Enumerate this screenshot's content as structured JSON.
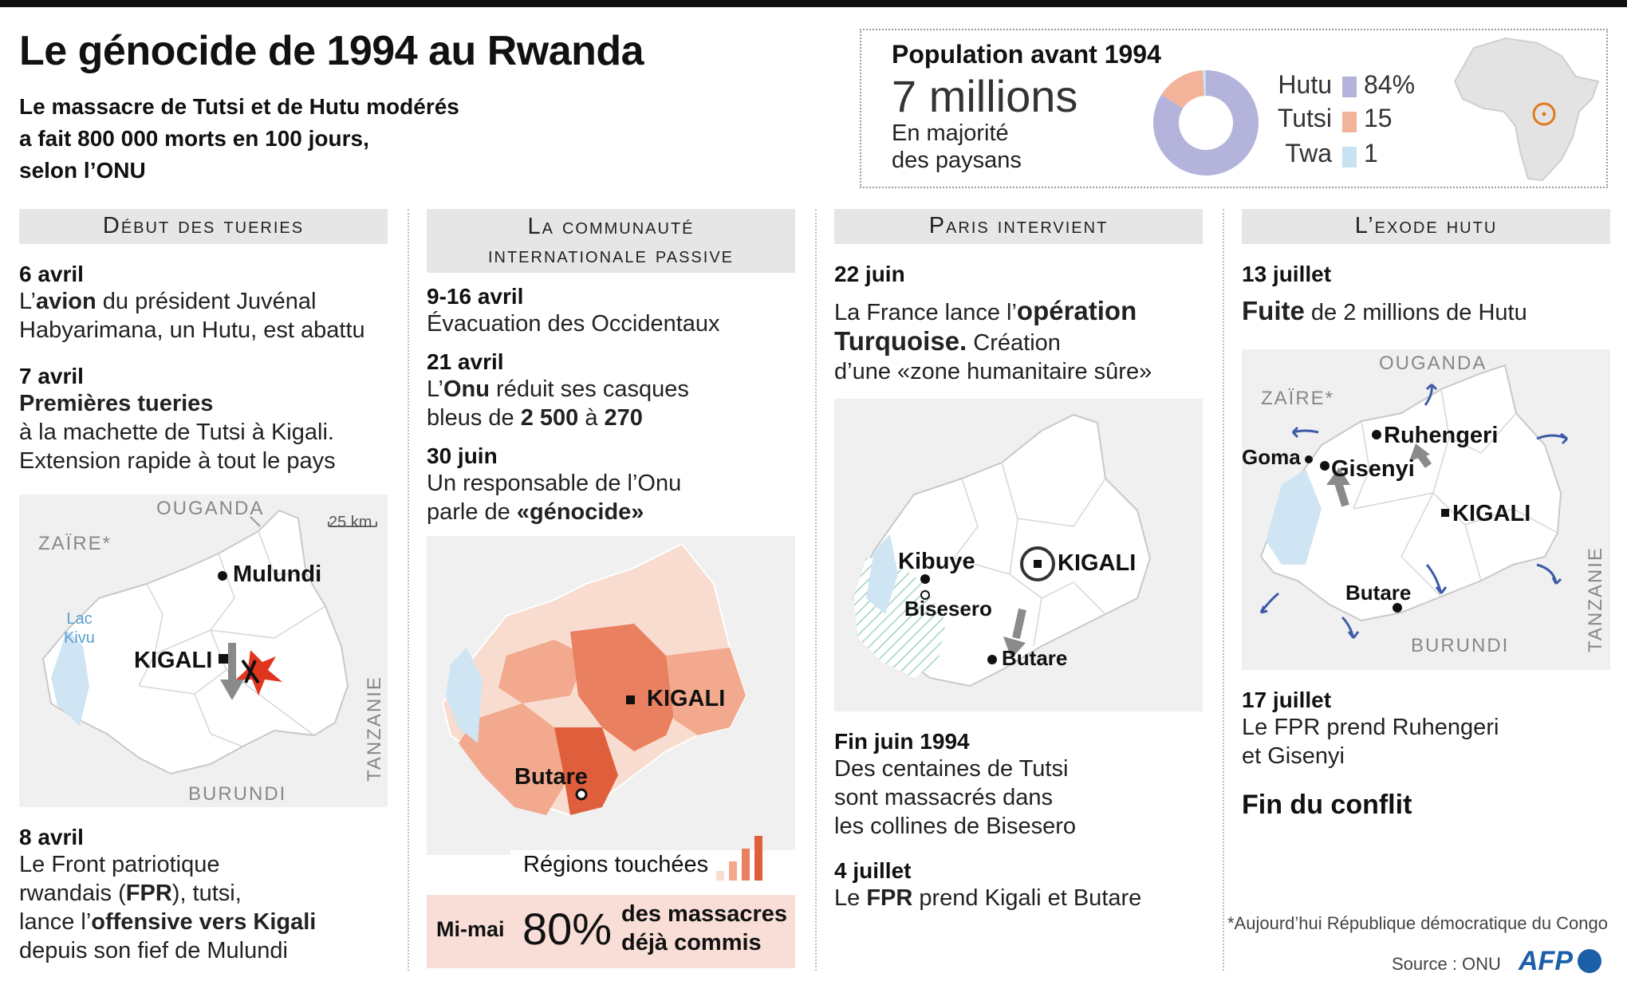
{
  "title": "Le génocide de 1994 au Rwanda",
  "subtitle": [
    "Le massacre de Tutsi et de Hutu modérés",
    "a fait 800 000 morts en 100 jours,",
    "selon l’ONU"
  ],
  "population": {
    "title": "Population avant 1994",
    "value": "7 millions",
    "note_line1": "En majorité",
    "note_line2": "des paysans",
    "colors": {
      "hutu": "#b3b3dc",
      "tutsi": "#f3b29a",
      "twa": "#c8e2f2"
    },
    "legend": [
      {
        "name": "Hutu",
        "value": "84%",
        "color": "#b3b3dc"
      },
      {
        "name": "Tutsi",
        "value": "15",
        "color": "#f3b29a"
      },
      {
        "name": "Twa",
        "value": "1",
        "color": "#c8e2f2"
      }
    ],
    "chart_data": {
      "type": "pie",
      "categories": [
        "Hutu",
        "Tutsi",
        "Twa"
      ],
      "values": [
        84,
        15,
        1
      ]
    }
  },
  "col1": {
    "heading": "Début des tueries",
    "e1_date": "6 avril",
    "e1_l1_pre": "L’",
    "e1_l1_bold": "avion",
    "e1_l1_post": " du président Juvénal",
    "e1_l2": "Habyarimana, un Hutu, est abattu",
    "e2_date": "7 avril",
    "e2_bold": "Premières tueries",
    "e2_l1": "à la machette de Tutsi à Kigali.",
    "e2_l2": "Extension rapide à tout le pays",
    "map": {
      "ouganda": "OUGANDA",
      "zaire": "ZAÏRE*",
      "scale": "25 km",
      "lake_l1": "Lac",
      "lake_l2": "Kivu",
      "mulundi": "Mulundi",
      "kigali": "KIGALI",
      "tanzanie": "TANZANIE",
      "burundi": "BURUNDI"
    },
    "e3_date": "8 avril",
    "e3_l1": "Le Front patriotique",
    "e3_l2_pre": "rwandais (",
    "e3_l2_bold": "FPR",
    "e3_l2_post": "), tutsi,",
    "e3_l3_pre": "lance l’",
    "e3_l3_bold": "offensive vers Kigali",
    "e3_l4": "depuis son fief de Mulundi"
  },
  "col2": {
    "heading_l1": "La communauté",
    "heading_l2": "internationale passive",
    "e1_date": "9-16 avril",
    "e1_l1": "Évacuation des Occidentaux",
    "e2_date": "21 avril",
    "e2_l1_pre": "L’",
    "e2_l1_bold": "Onu",
    "e2_l1_post": " réduit ses casques",
    "e2_l2_pre": "bleus de ",
    "e2_l2_b1": "2 500",
    "e2_l2_mid": " à ",
    "e2_l2_b2": "270",
    "e3_date": "30 juin",
    "e3_l1": "Un responsable de l’Onu",
    "e3_l2_pre": "parle de ",
    "e3_l2_bold": "«génocide»",
    "map": {
      "kigali": "KIGALI",
      "butare": "Butare"
    },
    "regions_label": "Régions touchées",
    "scale_colors": [
      "#f8dccf",
      "#f2a98d",
      "#e9805f",
      "#df5f3d"
    ],
    "mimai_label": "Mi-mai",
    "mimai_value": "80%",
    "mimai_l1": "des massacres",
    "mimai_l2": "déjà commis"
  },
  "col3": {
    "heading": "Paris intervient",
    "e1_date": "22 juin",
    "e1_l1_pre": "La France lance l’",
    "e1_l1_bold": "opération",
    "e1_l2_bold": "Turquoise.",
    "e1_l2_post": " Création",
    "e1_l3": "d’une «zone humanitaire sûre»",
    "map": {
      "kibuye": "Kibuye",
      "bisesero": "Bisesero",
      "kigali": "KIGALI",
      "butare": "Butare"
    },
    "e2_date": "Fin juin 1994",
    "e2_l1": "Des centaines de Tutsi",
    "e2_l2": "sont massacrés dans",
    "e2_l3": "les collines de Bisesero",
    "e3_date": "4 juillet",
    "e3_pre": "Le ",
    "e3_bold": "FPR",
    "e3_post": " prend Kigali et Butare"
  },
  "col4": {
    "heading": "L’exode hutu",
    "e1_date": "13 juillet",
    "e1_bold": "Fuite",
    "e1_post": " de 2 millions de Hutu",
    "map": {
      "ouganda": "OUGANDA",
      "zaire": "ZAÏRE*",
      "ruhengeri": "Ruhengeri",
      "goma": "Goma",
      "gisenyi": "Gisenyi",
      "kigali": "KIGALI",
      "butare": "Butare",
      "burundi": "BURUNDI",
      "tanzanie": "TANZANIE"
    },
    "e2_date": "17 juillet",
    "e2_l1": "Le FPR prend Ruhengeri",
    "e2_l2": "et Gisenyi",
    "end": "Fin du conflit"
  },
  "footnote": "*Aujourd’hui République démocratique du Congo",
  "source": "Source : ONU",
  "afp": "AFP"
}
